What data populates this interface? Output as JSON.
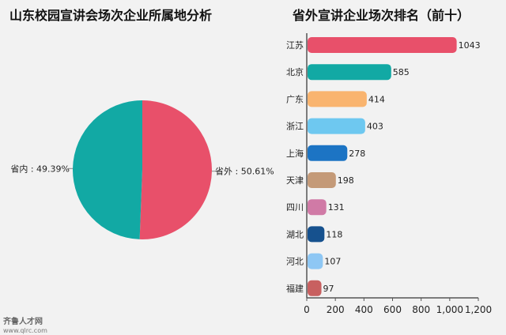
{
  "chart_data": [
    {
      "type": "pie",
      "title": "山东校园宣讲会场次企业所属地分析",
      "slices": [
        {
          "label": "省外",
          "value": 50.61,
          "display": "省外 : 50.61%",
          "color": "#e8506a"
        },
        {
          "label": "省内",
          "value": 49.39,
          "display": "省内 : 49.39%",
          "color": "#12a9a4"
        }
      ]
    },
    {
      "type": "bar",
      "orientation": "horizontal",
      "title": "省外宣讲企业场次排名（前十）",
      "categories": [
        "江苏",
        "北京",
        "广东",
        "浙江",
        "上海",
        "天津",
        "四川",
        "湖北",
        "河北",
        "福建"
      ],
      "values": [
        1043,
        585,
        414,
        403,
        278,
        198,
        131,
        118,
        107,
        97
      ],
      "colors": [
        "#e8506a",
        "#12a9a4",
        "#f9b46f",
        "#6ec8f0",
        "#1c74c4",
        "#c49a78",
        "#d07aa6",
        "#16518e",
        "#8ec7f4",
        "#c86060"
      ],
      "xlim": [
        0,
        1200
      ],
      "xticks": [
        0,
        200,
        400,
        600,
        800,
        1000,
        1200
      ],
      "xtick_labels": [
        "0",
        "200",
        "400",
        "600",
        "800",
        "1,000",
        "1,200"
      ],
      "grid": false
    }
  ],
  "watermark": {
    "brand": "齐鲁人才网",
    "url": "www.qlrc.com"
  }
}
